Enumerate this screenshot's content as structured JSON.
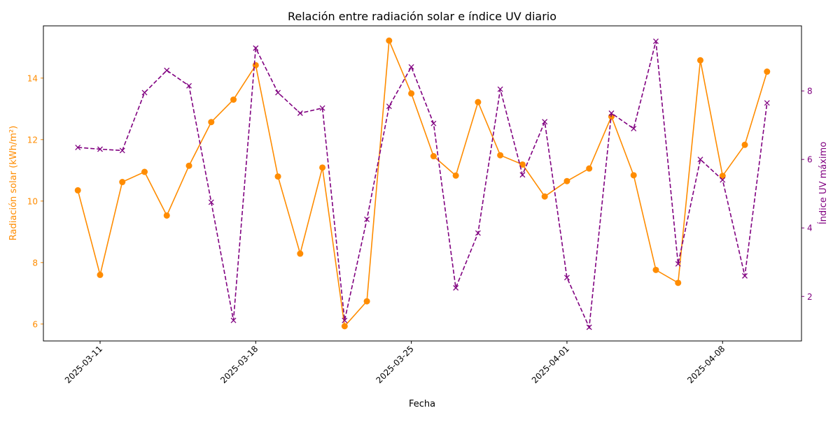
{
  "chart_data": {
    "type": "line",
    "title": "Relación entre radiación solar e índice UV diario",
    "xlabel": "Fecha",
    "ylabel_left": "Radiación solar (kWh/m²)",
    "ylabel_right": "Índice UV máximo",
    "x_ticks": [
      "2025-03-11",
      "2025-03-18",
      "2025-03-25",
      "2025-04-01",
      "2025-04-08"
    ],
    "y_left_ticks": [
      6,
      8,
      10,
      12,
      14
    ],
    "y_right_ticks": [
      2,
      4,
      6,
      8
    ],
    "y_left_range": [
      5.45,
      15.7
    ],
    "y_right_range": [
      0.7,
      9.9
    ],
    "grid": false,
    "legend": "none",
    "colors": {
      "radiation": "#ff8c00",
      "uv": "#800080"
    },
    "x": [
      "2025-03-10",
      "2025-03-11",
      "2025-03-12",
      "2025-03-13",
      "2025-03-14",
      "2025-03-15",
      "2025-03-16",
      "2025-03-17",
      "2025-03-18",
      "2025-03-19",
      "2025-03-20",
      "2025-03-21",
      "2025-03-22",
      "2025-03-23",
      "2025-03-24",
      "2025-03-25",
      "2025-03-26",
      "2025-03-27",
      "2025-03-28",
      "2025-03-29",
      "2025-03-30",
      "2025-03-31",
      "2025-04-01",
      "2025-04-02",
      "2025-04-03",
      "2025-04-04",
      "2025-04-05",
      "2025-04-06",
      "2025-04-07",
      "2025-04-08",
      "2025-04-09",
      "2025-04-10"
    ],
    "series": [
      {
        "axis": "left",
        "marker": "circle",
        "line": "solid",
        "values": [
          10.35,
          7.6,
          10.62,
          10.95,
          9.53,
          11.15,
          12.57,
          13.3,
          14.42,
          10.8,
          8.29,
          11.09,
          5.93,
          6.74,
          15.22,
          13.5,
          11.46,
          10.83,
          13.22,
          11.49,
          11.19,
          10.15,
          10.65,
          11.06,
          12.75,
          10.84,
          7.76,
          7.34,
          14.58,
          10.82,
          11.83,
          14.21
        ]
      },
      {
        "axis": "right",
        "marker": "x",
        "line": "dashed",
        "values": [
          6.35,
          6.3,
          6.26,
          7.95,
          8.6,
          8.15,
          4.75,
          1.3,
          9.25,
          7.95,
          7.35,
          7.5,
          1.3,
          4.25,
          7.55,
          8.7,
          7.05,
          2.25,
          3.85,
          8.05,
          5.55,
          7.1,
          2.55,
          1.1,
          7.35,
          6.9,
          9.45,
          2.95,
          6.0,
          5.4,
          2.6,
          7.65
        ]
      }
    ]
  }
}
